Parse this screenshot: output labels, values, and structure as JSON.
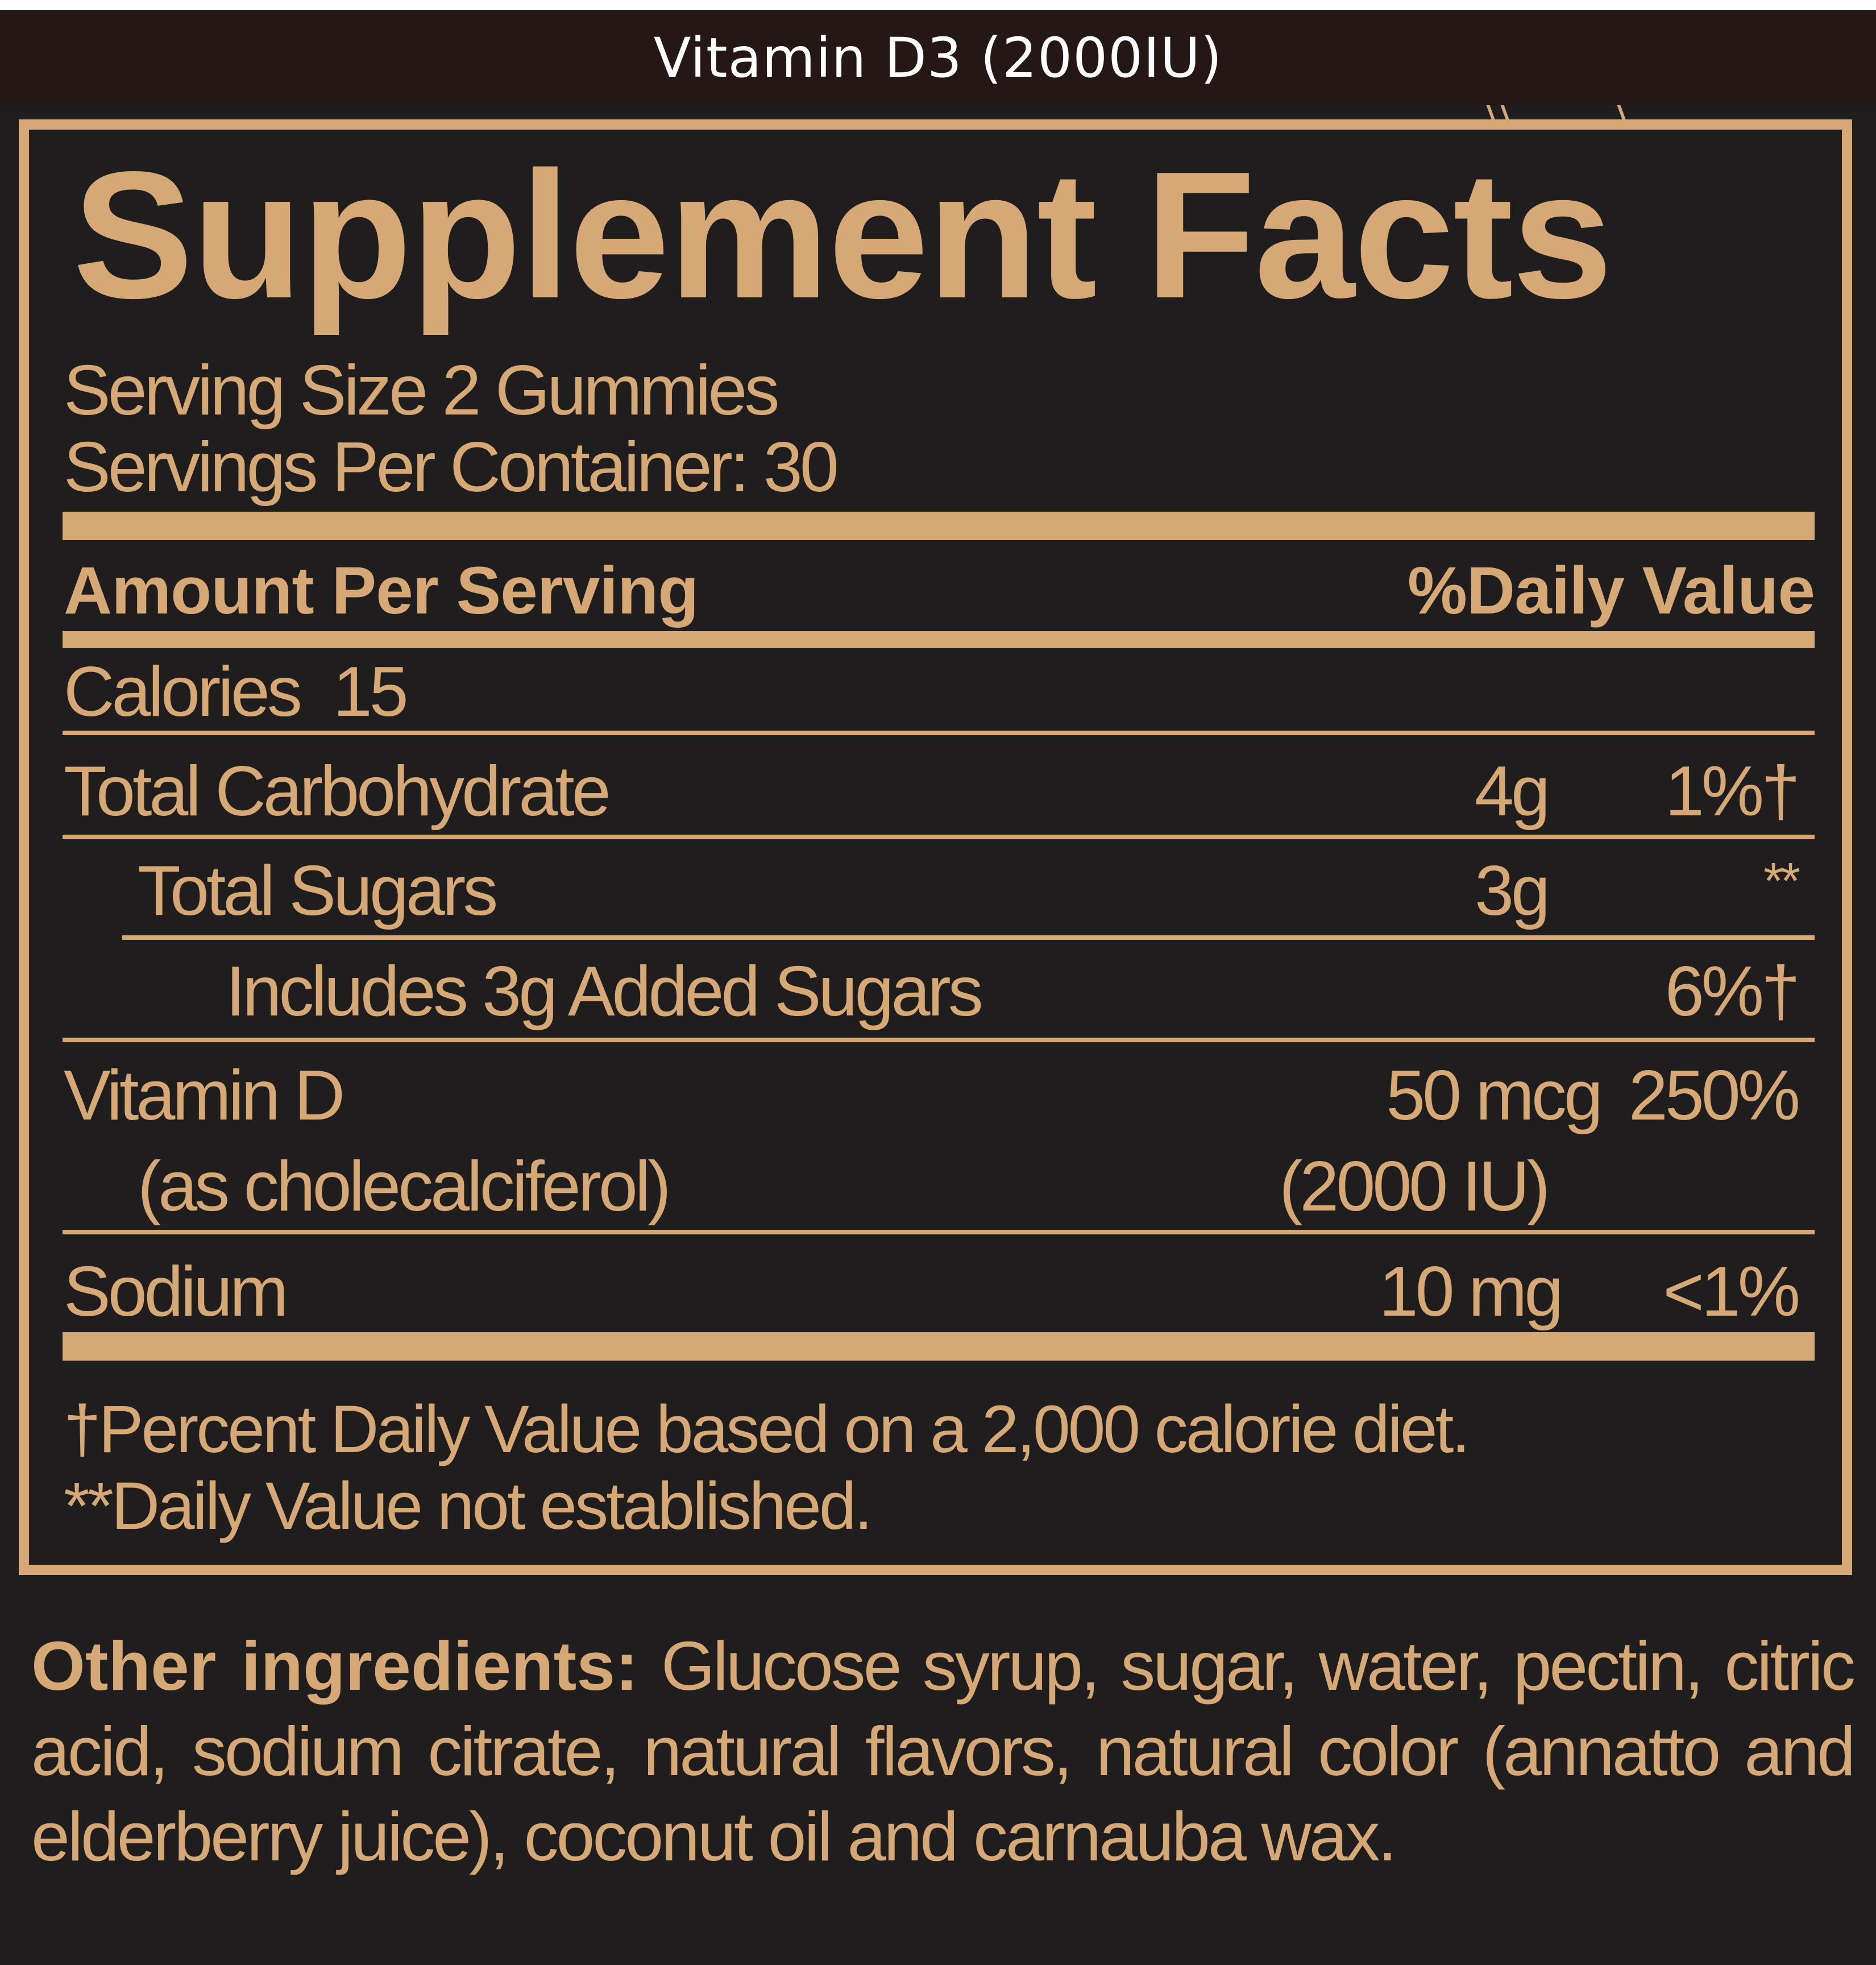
{
  "header": {
    "title": "Vitamin D3 (2000IU)"
  },
  "label": {
    "title": "Supplement Facts",
    "serving_size": "Serving Size 2 Gummies",
    "servings_per_container": "Servings Per Container: 30",
    "amount_header": "Amount Per Serving",
    "dv_header": "%Daily Value",
    "calories": "Calories  15",
    "rows": [
      {
        "name": "Total Carbohydrate",
        "amount": "4g",
        "dv": "1%†"
      },
      {
        "name": "Total Sugars",
        "amount": "3g",
        "dv": "**"
      },
      {
        "name": "Includes 3g Added Sugars",
        "amount": "",
        "dv": "6%†"
      },
      {
        "name": "Vitamin D",
        "amount": "50 mcg",
        "dv": "250%"
      },
      {
        "name": "(as cholecalciferol)",
        "amount": "(2000 IU)",
        "dv": ""
      },
      {
        "name": "Sodium",
        "amount": "10 mg",
        "dv": "<1%"
      }
    ],
    "footnote_1": "†Percent Daily Value based on a 2,000 calorie diet.",
    "footnote_2": "**Daily Value not established."
  },
  "ingredients": {
    "label": "Other ingredients:",
    "text": "Glucose syrup, sugar, water, pectin, citric acid, sodium citrate, natural flavors, natural color (annatto and elderberry juice), coconut oil and carnauba wax."
  },
  "colors": {
    "accent": "#d5a875",
    "background": "#1f1d1e",
    "header": "#251715"
  }
}
